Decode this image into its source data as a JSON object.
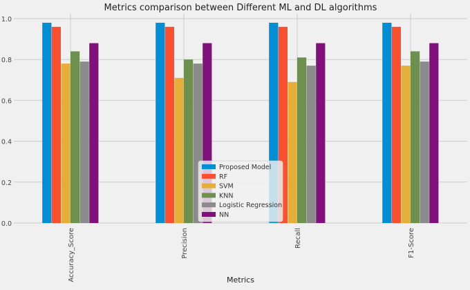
{
  "chart_data": {
    "type": "bar",
    "title": "Metrics comparison between Different ML and DL algorithms",
    "xlabel": "Metrics",
    "ylabel": "",
    "ylim": [
      0,
      1.0
    ],
    "yticks": [
      "0.0",
      "0.2",
      "0.4",
      "0.6",
      "0.8",
      "1.0"
    ],
    "grid": true,
    "legend_position": "lower-center",
    "categories": [
      "Accuracy_Score",
      "Precision",
      "Recall",
      "F1-Score"
    ],
    "series": [
      {
        "name": "Proposed Model",
        "color": "#008fd5",
        "values": [
          0.98,
          0.98,
          0.98,
          0.98
        ]
      },
      {
        "name": "RF",
        "color": "#fc4f30",
        "values": [
          0.96,
          0.96,
          0.96,
          0.96
        ]
      },
      {
        "name": "SVM",
        "color": "#e5ae38",
        "values": [
          0.78,
          0.71,
          0.69,
          0.77
        ]
      },
      {
        "name": "KNN",
        "color": "#6d904f",
        "values": [
          0.84,
          0.8,
          0.81,
          0.84
        ]
      },
      {
        "name": "Logistic Regression",
        "color": "#8b8b8b",
        "values": [
          0.79,
          0.78,
          0.77,
          0.79
        ]
      },
      {
        "name": "NN",
        "color": "#810f7c",
        "values": [
          0.88,
          0.88,
          0.88,
          0.88
        ]
      }
    ]
  }
}
